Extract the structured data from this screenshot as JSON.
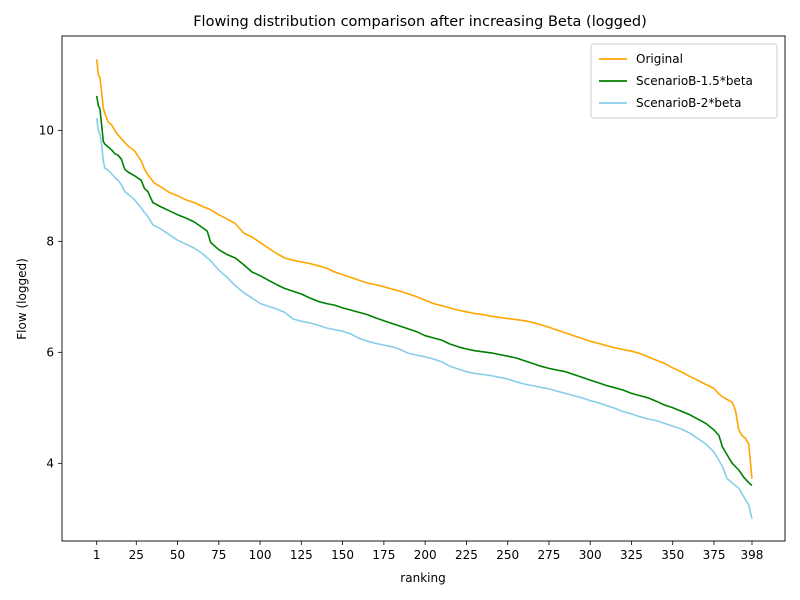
{
  "chart_data": {
    "type": "line",
    "title": "Flowing distribution comparison after increasing Beta (logged)",
    "xlabel": "ranking",
    "ylabel": "Flow (logged)",
    "xlim": [
      -20,
      418
    ],
    "ylim": [
      2.6,
      11.7
    ],
    "xticks": [
      "1",
      "25",
      "50",
      "75",
      "100",
      "125",
      "150",
      "175",
      "200",
      "225",
      "250",
      "275",
      "300",
      "325",
      "350",
      "375",
      "398"
    ],
    "xtick_values": [
      1,
      25,
      50,
      75,
      100,
      125,
      150,
      175,
      200,
      225,
      250,
      275,
      300,
      325,
      350,
      375,
      398
    ],
    "yticks": [
      "4",
      "6",
      "8",
      "10"
    ],
    "ytick_values": [
      4,
      6,
      8,
      10
    ],
    "legend_position": "top-right",
    "grid": false,
    "series": [
      {
        "name": "Original",
        "color": "#ffa500",
        "x": [
          1,
          2,
          3,
          5,
          6,
          8,
          10,
          13,
          16,
          18,
          20,
          24,
          28,
          30,
          32,
          36,
          40,
          45,
          50,
          55,
          60,
          65,
          70,
          75,
          80,
          85,
          90,
          95,
          100,
          105,
          110,
          115,
          120,
          125,
          130,
          135,
          140,
          145,
          150,
          155,
          160,
          165,
          170,
          175,
          180,
          185,
          190,
          195,
          200,
          205,
          210,
          215,
          220,
          225,
          230,
          235,
          240,
          245,
          250,
          255,
          260,
          265,
          270,
          275,
          280,
          285,
          290,
          295,
          300,
          305,
          310,
          315,
          320,
          325,
          330,
          335,
          340,
          345,
          350,
          355,
          360,
          365,
          370,
          375,
          378,
          380,
          383,
          386,
          388,
          390,
          392,
          394,
          396,
          398
        ],
        "y": [
          11.28,
          11.0,
          10.95,
          10.4,
          10.3,
          10.15,
          10.1,
          9.95,
          9.85,
          9.78,
          9.72,
          9.63,
          9.45,
          9.3,
          9.2,
          9.05,
          8.98,
          8.88,
          8.82,
          8.75,
          8.7,
          8.63,
          8.57,
          8.48,
          8.4,
          8.32,
          8.15,
          8.08,
          7.98,
          7.88,
          7.78,
          7.7,
          7.66,
          7.63,
          7.6,
          7.56,
          7.52,
          7.45,
          7.4,
          7.35,
          7.3,
          7.25,
          7.22,
          7.18,
          7.14,
          7.1,
          7.05,
          7.0,
          6.94,
          6.88,
          6.84,
          6.8,
          6.76,
          6.73,
          6.7,
          6.68,
          6.65,
          6.63,
          6.61,
          6.59,
          6.57,
          6.54,
          6.5,
          6.45,
          6.4,
          6.35,
          6.3,
          6.25,
          6.2,
          6.16,
          6.12,
          6.08,
          6.05,
          6.02,
          5.98,
          5.92,
          5.86,
          5.8,
          5.72,
          5.65,
          5.57,
          5.5,
          5.42,
          5.35,
          5.25,
          5.2,
          5.15,
          5.1,
          4.95,
          4.6,
          4.5,
          4.45,
          4.35,
          3.72
        ]
      },
      {
        "name": "ScenarioB-1.5*beta",
        "color": "#008000",
        "x": [
          1,
          2,
          3,
          4,
          5,
          6,
          8,
          10,
          12,
          14,
          16,
          18,
          20,
          24,
          28,
          30,
          32,
          35,
          40,
          45,
          50,
          55,
          60,
          65,
          68,
          70,
          75,
          80,
          85,
          90,
          95,
          100,
          105,
          110,
          115,
          120,
          125,
          130,
          135,
          140,
          145,
          150,
          155,
          160,
          165,
          170,
          175,
          180,
          185,
          190,
          195,
          200,
          205,
          210,
          215,
          220,
          225,
          230,
          235,
          240,
          245,
          250,
          255,
          260,
          265,
          270,
          275,
          280,
          285,
          290,
          295,
          300,
          305,
          310,
          315,
          320,
          325,
          330,
          335,
          340,
          345,
          350,
          355,
          360,
          365,
          370,
          375,
          378,
          380,
          383,
          386,
          390,
          393,
          396,
          398
        ],
        "y": [
          10.62,
          10.45,
          10.38,
          10.1,
          9.8,
          9.75,
          9.7,
          9.65,
          9.58,
          9.55,
          9.48,
          9.3,
          9.25,
          9.18,
          9.1,
          8.95,
          8.9,
          8.7,
          8.62,
          8.55,
          8.48,
          8.42,
          8.35,
          8.25,
          8.18,
          7.98,
          7.85,
          7.76,
          7.7,
          7.58,
          7.45,
          7.38,
          7.3,
          7.22,
          7.15,
          7.1,
          7.05,
          6.98,
          6.92,
          6.88,
          6.85,
          6.8,
          6.76,
          6.72,
          6.68,
          6.62,
          6.57,
          6.52,
          6.47,
          6.42,
          6.37,
          6.3,
          6.26,
          6.22,
          6.15,
          6.1,
          6.06,
          6.03,
          6.01,
          5.99,
          5.96,
          5.93,
          5.9,
          5.85,
          5.8,
          5.75,
          5.71,
          5.68,
          5.65,
          5.6,
          5.55,
          5.5,
          5.45,
          5.4,
          5.36,
          5.32,
          5.26,
          5.22,
          5.18,
          5.12,
          5.05,
          5.0,
          4.94,
          4.88,
          4.8,
          4.72,
          4.6,
          4.5,
          4.3,
          4.15,
          4.0,
          3.88,
          3.75,
          3.65,
          3.6
        ]
      },
      {
        "name": "ScenarioB-2*beta",
        "color": "#87ceeb",
        "x": [
          1,
          2,
          3,
          4,
          5,
          6,
          8,
          10,
          12,
          14,
          16,
          18,
          20,
          24,
          28,
          30,
          32,
          35,
          40,
          45,
          50,
          55,
          60,
          65,
          70,
          75,
          80,
          85,
          90,
          95,
          100,
          105,
          110,
          115,
          120,
          125,
          130,
          135,
          140,
          145,
          150,
          155,
          160,
          165,
          170,
          175,
          180,
          185,
          190,
          195,
          200,
          205,
          210,
          215,
          220,
          225,
          230,
          235,
          240,
          245,
          250,
          255,
          260,
          265,
          270,
          275,
          280,
          285,
          290,
          295,
          300,
          305,
          310,
          315,
          320,
          325,
          330,
          335,
          340,
          345,
          350,
          355,
          360,
          365,
          370,
          375,
          378,
          380,
          383,
          386,
          390,
          393,
          396,
          398
        ],
        "y": [
          10.22,
          10.0,
          9.92,
          9.75,
          9.45,
          9.32,
          9.28,
          9.22,
          9.15,
          9.1,
          9.02,
          8.9,
          8.85,
          8.75,
          8.6,
          8.52,
          8.45,
          8.3,
          8.22,
          8.12,
          8.02,
          7.95,
          7.88,
          7.78,
          7.65,
          7.48,
          7.35,
          7.2,
          7.08,
          6.98,
          6.88,
          6.83,
          6.78,
          6.72,
          6.6,
          6.56,
          6.53,
          6.49,
          6.44,
          6.41,
          6.38,
          6.33,
          6.25,
          6.2,
          6.16,
          6.13,
          6.1,
          6.05,
          5.98,
          5.95,
          5.92,
          5.88,
          5.83,
          5.75,
          5.7,
          5.65,
          5.62,
          5.6,
          5.58,
          5.55,
          5.52,
          5.47,
          5.43,
          5.4,
          5.37,
          5.34,
          5.3,
          5.26,
          5.22,
          5.18,
          5.13,
          5.09,
          5.04,
          4.99,
          4.93,
          4.89,
          4.84,
          4.8,
          4.77,
          4.72,
          4.67,
          4.62,
          4.55,
          4.45,
          4.35,
          4.2,
          4.05,
          3.95,
          3.72,
          3.65,
          3.55,
          3.4,
          3.25,
          3.0
        ]
      }
    ]
  }
}
